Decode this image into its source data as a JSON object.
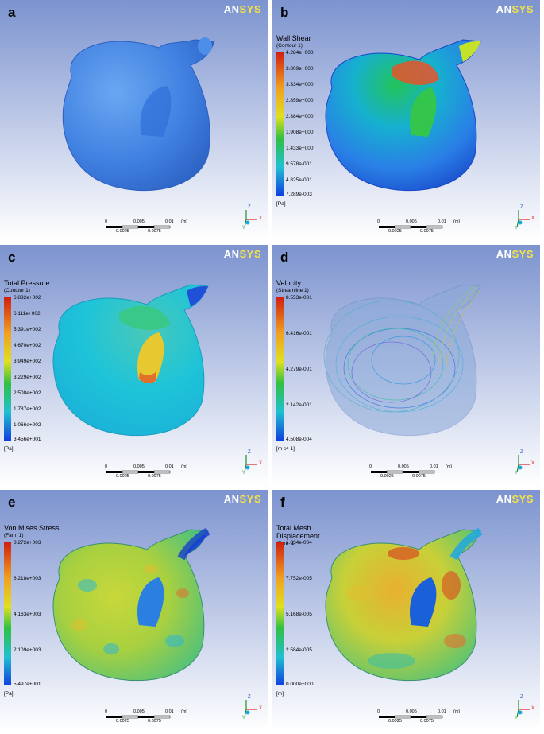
{
  "logo": {
    "a": "AN",
    "b": "SYS"
  },
  "scale": {
    "t0": "0",
    "t1": "0.005",
    "t2": "0.01",
    "unit": "(m)",
    "b1": "0.0025",
    "b2": "0.0075"
  },
  "axes": {
    "z": "Z",
    "x": "X",
    "y": "Y"
  },
  "panels": [
    {
      "label": "a",
      "legend": null
    },
    {
      "label": "b",
      "legend": {
        "title": "Wall Shear",
        "subtitle": "(Contour 1)",
        "units": "[Pa]",
        "ticks": [
          "4.284e+000",
          "3.809e+000",
          "3.334e+000",
          "2.859e+000",
          "2.384e+000",
          "1.908e+000",
          "1.433e+000",
          "9.578e-001",
          "4.825e-001",
          "7.289e-003"
        ]
      }
    },
    {
      "label": "c",
      "legend": {
        "title": "Total Pressure",
        "subtitle": "(Contour 1)",
        "units": "[Pa]",
        "ticks": [
          "6.832e+002",
          "6.111e+002",
          "5.391e+002",
          "4.670e+002",
          "3.949e+002",
          "3.229e+002",
          "2.508e+002",
          "1.787e+002",
          "1.066e+002",
          "3.456e+001"
        ]
      }
    },
    {
      "label": "d",
      "legend": {
        "title": "Velocity",
        "subtitle": "(Streamline 1)",
        "units": "[m s^-1]",
        "ticks": [
          "8.553e-001",
          "6.416e-001",
          "4.279e-001",
          "2.142e-001",
          "4.508e-004"
        ]
      }
    },
    {
      "label": "e",
      "legend": {
        "title": "Von Mises Stress",
        "subtitle": "(Fam_1)",
        "units": "[Pa]",
        "ticks": [
          "8.272e+003",
          "6.218e+003",
          "4.163e+003",
          "2.109e+003",
          "5.497e+001"
        ]
      }
    },
    {
      "label": "f",
      "legend": {
        "title": "Total Mesh Displacement",
        "subtitle": "(Fam_1)",
        "units": "[m]",
        "ticks": [
          "1.034e-004",
          "7.752e-005",
          "5.168e-005",
          "2.584e-005",
          "0.000e+000"
        ]
      }
    }
  ]
}
